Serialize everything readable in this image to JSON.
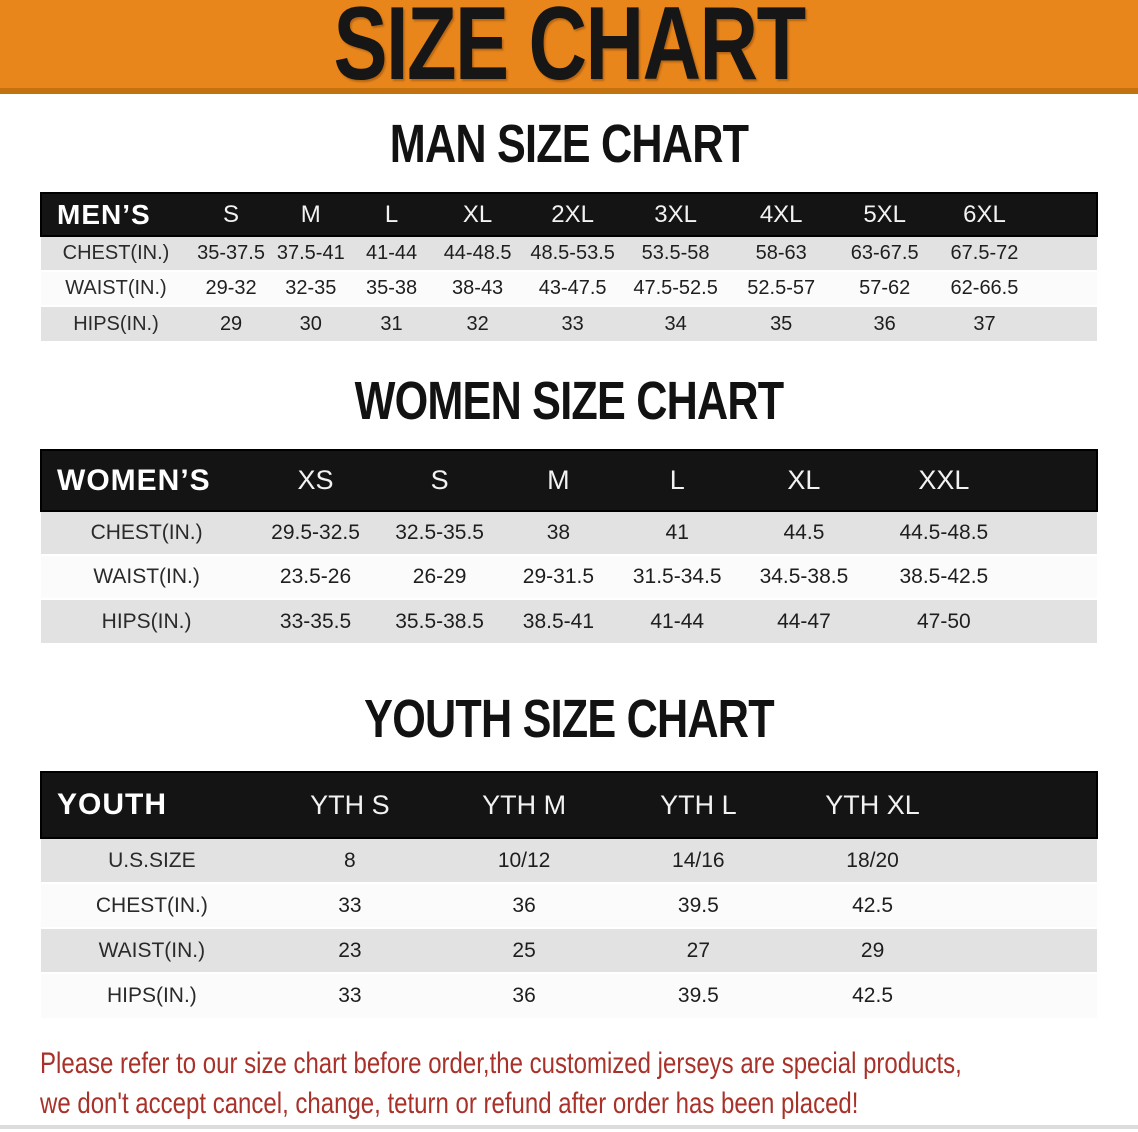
{
  "banner": {
    "title": "SIZE CHART"
  },
  "colors": {
    "banner_orange": "#E8861C",
    "banner_orange_edge": "#C4720F",
    "header_bar_black": "#141414",
    "stripe_gray": "#E2E2E2",
    "row_white": "#FBFBFB",
    "disclaimer_red": "#A8322A"
  },
  "sections": {
    "men": {
      "heading": "MAN SIZE CHART",
      "group_label": "MEN’S",
      "sizes": [
        "S",
        "M",
        "L",
        "XL",
        "2XL",
        "3XL",
        "4XL",
        "5XL",
        "6XL"
      ],
      "rows": [
        {
          "label": "CHEST(IN.)",
          "values": [
            "35-37.5",
            "37.5-41",
            "41-44",
            "44-48.5",
            "48.5-53.5",
            "53.5-58",
            "58-63",
            "63-67.5",
            "67.5-72"
          ]
        },
        {
          "label": "WAIST(IN.)",
          "values": [
            "29-32",
            "32-35",
            "35-38",
            "38-43",
            "43-47.5",
            "47.5-52.5",
            "52.5-57",
            "57-62",
            "62-66.5"
          ]
        },
        {
          "label": "HIPS(IN.)",
          "values": [
            "29",
            "30",
            "31",
            "32",
            "33",
            "34",
            "35",
            "36",
            "37"
          ]
        }
      ]
    },
    "women": {
      "heading": "WOMEN SIZE CHART",
      "group_label": "WOMEN’S",
      "sizes": [
        "XS",
        "S",
        "M",
        "L",
        "XL",
        "XXL"
      ],
      "rows": [
        {
          "label": "CHEST(IN.)",
          "values": [
            "29.5-32.5",
            "32.5-35.5",
            "38",
            "41",
            "44.5",
            "44.5-48.5"
          ]
        },
        {
          "label": "WAIST(IN.)",
          "values": [
            "23.5-26",
            "26-29",
            "29-31.5",
            "31.5-34.5",
            "34.5-38.5",
            "38.5-42.5"
          ]
        },
        {
          "label": "HIPS(IN.)",
          "values": [
            "33-35.5",
            "35.5-38.5",
            "38.5-41",
            "41-44",
            "44-47",
            "47-50"
          ]
        }
      ]
    },
    "youth": {
      "heading": "YOUTH SIZE CHART",
      "group_label": "YOUTH",
      "sizes": [
        "YTH S",
        "YTH M",
        "YTH L",
        "YTH XL"
      ],
      "rows": [
        {
          "label": "U.S.SIZE",
          "values": [
            "8",
            "10/12",
            "14/16",
            "18/20"
          ]
        },
        {
          "label": "CHEST(IN.)",
          "values": [
            "33",
            "36",
            "39.5",
            "42.5"
          ]
        },
        {
          "label": "WAIST(IN.)",
          "values": [
            "23",
            "25",
            "27",
            "29"
          ]
        },
        {
          "label": "HIPS(IN.)",
          "values": [
            "33",
            "36",
            "39.5",
            "42.5"
          ]
        }
      ]
    }
  },
  "disclaimer": {
    "line1": "Please refer to our size chart before order,the customized jerseys are special products,",
    "line2": "we don't accept cancel, change, teturn or refund after order has been placed!"
  }
}
